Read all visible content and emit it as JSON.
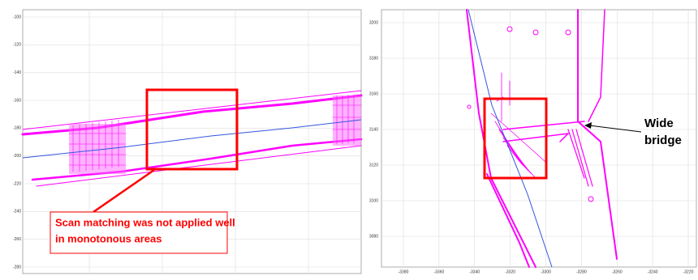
{
  "left_panel": {
    "yticks": [
      "-100",
      "-120",
      "-140",
      "-160",
      "-180",
      "-200",
      "-220",
      "-240",
      "-260",
      "-280"
    ]
  },
  "right_panel": {
    "yticks": [
      "3200",
      "3180",
      "3160",
      "3140",
      "3120",
      "3100",
      "3080"
    ],
    "xticks": [
      "-3380",
      "-3360",
      "-3340",
      "-3320",
      "-3300",
      "-3280",
      "-3260",
      "-3240",
      "-3220"
    ]
  },
  "annotations": {
    "scan_matching": [
      "Scan matching was not applied well",
      "in monotonous areas"
    ],
    "wide_bridge": [
      "Wide",
      "bridge"
    ]
  }
}
